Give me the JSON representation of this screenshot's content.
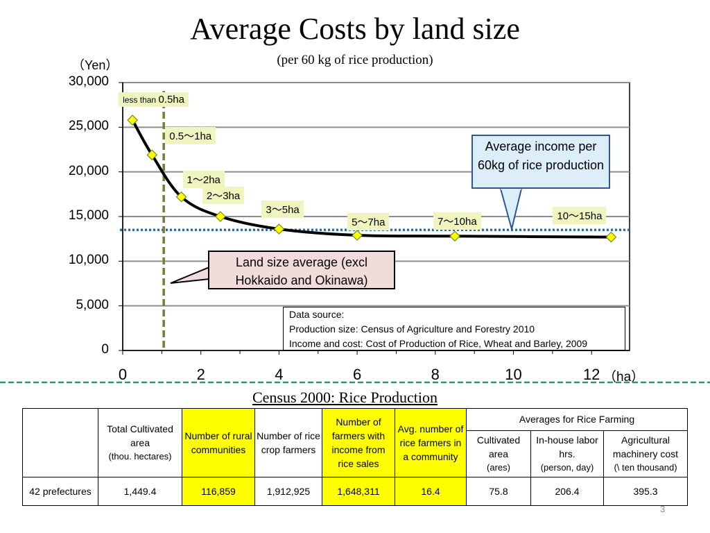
{
  "title": "Average Costs by land size",
  "subtitle": "(per 60 kg of rice production)",
  "chart_data": {
    "type": "line",
    "title": "Average Costs by land size",
    "ylabel": "（Yen）",
    "xlabel": "（ha）",
    "xlim": [
      0,
      13
    ],
    "ylim": [
      0,
      30000
    ],
    "x_ticks": [
      0,
      2,
      4,
      6,
      8,
      10,
      12
    ],
    "y_ticks": [
      0,
      5000,
      10000,
      15000,
      20000,
      25000,
      30000
    ],
    "x_tick_labels": [
      "0",
      "2",
      "4",
      "6",
      "8",
      "10",
      "12"
    ],
    "y_tick_labels": [
      "0",
      "5,000",
      "10,000",
      "15,000",
      "20,000",
      "25,000",
      "30,000"
    ],
    "grid": true,
    "series": [
      {
        "name": "Average cost by land size",
        "x": [
          0.25,
          0.75,
          1.5,
          2.5,
          4,
          6,
          8.5,
          12.5
        ],
        "y": [
          25800,
          21900,
          17200,
          15000,
          13600,
          12900,
          12800,
          12700
        ],
        "labels": [
          "less than 0.5ha",
          "0.5～1ha",
          "1～2ha",
          "2～3ha",
          "3～5ha",
          "5～7ha",
          "7～10ha",
          "10～15ha"
        ]
      }
    ],
    "reference_lines": {
      "average_income_y": 13500,
      "average_land_size_x": 1.05
    },
    "point_label_prefix": "less than",
    "point_label_first_suffix": "0.5ha",
    "annotations": {
      "income": "Average income per 60kg of rice production",
      "land": "Land size average (excl Hokkaido and Okinawa)",
      "source_lines": [
        "Data source:",
        "Production size: Census of Agriculture and Forestry 2010",
        "Income and cost: Cost of Production of Rice, Wheat and Barley, 2009"
      ]
    }
  },
  "census": {
    "title": "Census 2000: Rice Production",
    "headers": {
      "total_area": "Total Cultivated area",
      "total_area_unit": "(thou.  hectares)",
      "communities": "Number of rural communities",
      "farmers": "Number of rice crop farmers",
      "income_farmers": "Number of farmers with income from rice sales",
      "avg_farmers": "Avg. number of rice farmers in a community",
      "averages_group": "Averages for Rice Farming",
      "cultivated": "Cultivated area",
      "cultivated_unit": "(ares)",
      "labor": "In-house labor hrs.",
      "labor_unit": "(person, day)",
      "machinery": "Agricultural machinery cost",
      "machinery_unit": "(\\ ten thousand)"
    },
    "row": {
      "label": "42 prefectures",
      "total_area": "1,449.4",
      "communities": "116,859",
      "farmers": "1,912,925",
      "income_farmers": "1,648,311",
      "avg_farmers": "16.4",
      "cultivated": "75.8",
      "labor": "206.4",
      "machinery": "395.3"
    }
  },
  "page_number": "3",
  "colors": {
    "income_line": "#1f6fc5",
    "land_line": "#7a7a3a",
    "marker": "#ffff00",
    "marker_stroke": "#6b8e23",
    "highlight": "#ffff00",
    "separator": "#22a05a"
  }
}
